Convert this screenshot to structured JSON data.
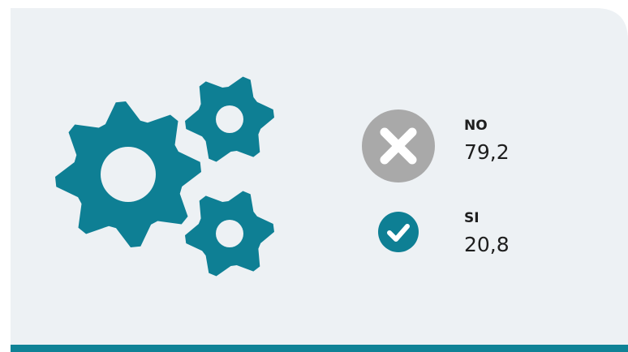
{
  "items": [
    {
      "label": "NO",
      "value": "79,2"
    },
    {
      "label": "SI",
      "value": "20,8"
    }
  ]
}
